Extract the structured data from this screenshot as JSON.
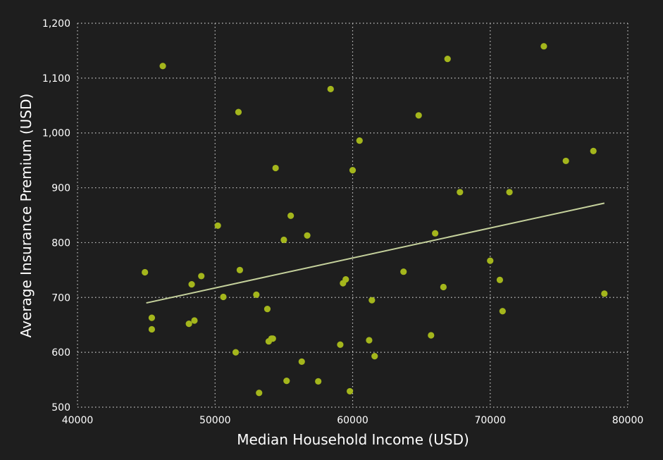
{
  "chart_data": {
    "type": "scatter",
    "title": "",
    "xlabel": "Median Household Income (USD)",
    "ylabel": "Average Insurance Premium (USD)",
    "xlim": [
      40000,
      80000
    ],
    "ylim": [
      500,
      1200
    ],
    "x_ticks": [
      40000,
      50000,
      60000,
      70000,
      80000
    ],
    "x_tick_labels": [
      "40000",
      "50000",
      "60000",
      "70000",
      "80000"
    ],
    "y_ticks": [
      500,
      600,
      700,
      800,
      900,
      1000,
      1100,
      1200
    ],
    "y_tick_labels": [
      "500",
      "600",
      "700",
      "800",
      "900",
      "1,000",
      "1,100",
      "1,200"
    ],
    "grid": true,
    "legend": "none",
    "point_color": "#a4b61c",
    "trend_color": "#c5d19c",
    "background_color": "#1e1e1e",
    "points": [
      [
        44900,
        746
      ],
      [
        45400,
        663
      ],
      [
        45400,
        642
      ],
      [
        46200,
        1122
      ],
      [
        48100,
        652
      ],
      [
        48300,
        724
      ],
      [
        48500,
        658
      ],
      [
        49000,
        739
      ],
      [
        50200,
        831
      ],
      [
        50600,
        701
      ],
      [
        51500,
        600
      ],
      [
        51700,
        1038
      ],
      [
        51800,
        750
      ],
      [
        53000,
        705
      ],
      [
        53200,
        526
      ],
      [
        53800,
        679
      ],
      [
        53900,
        620
      ],
      [
        54100,
        625
      ],
      [
        54200,
        625
      ],
      [
        54400,
        936
      ],
      [
        55000,
        805
      ],
      [
        55200,
        548
      ],
      [
        55500,
        849
      ],
      [
        56300,
        583
      ],
      [
        56700,
        813
      ],
      [
        57500,
        547
      ],
      [
        58400,
        1080
      ],
      [
        59100,
        614
      ],
      [
        59300,
        726
      ],
      [
        59500,
        733
      ],
      [
        59800,
        529
      ],
      [
        60000,
        932
      ],
      [
        60500,
        986
      ],
      [
        61200,
        622
      ],
      [
        61400,
        695
      ],
      [
        61600,
        593
      ],
      [
        63700,
        747
      ],
      [
        64800,
        1032
      ],
      [
        65700,
        631
      ],
      [
        66000,
        817
      ],
      [
        66600,
        719
      ],
      [
        66900,
        1135
      ],
      [
        67800,
        892
      ],
      [
        70000,
        767
      ],
      [
        70700,
        732
      ],
      [
        70900,
        675
      ],
      [
        71400,
        892
      ],
      [
        73900,
        1158
      ],
      [
        75500,
        949
      ],
      [
        77500,
        967
      ],
      [
        78300,
        707
      ]
    ],
    "trend_line": {
      "x": [
        45000,
        78300
      ],
      "y": [
        690,
        872
      ]
    }
  }
}
